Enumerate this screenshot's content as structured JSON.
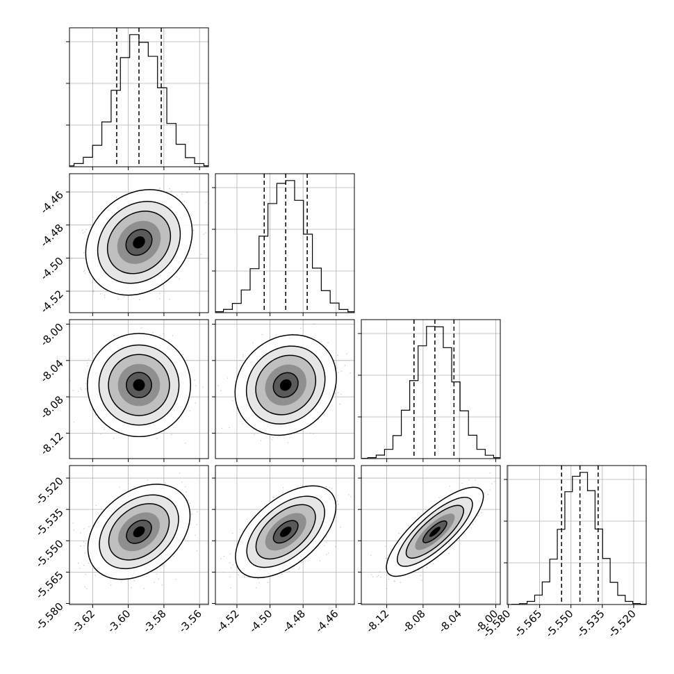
{
  "chart_data": {
    "type": "corner",
    "grid": true,
    "parameters": [
      {
        "index": 0,
        "range": [
          -3.633,
          -3.555
        ],
        "ticks": [
          "-3.62",
          "-3.60",
          "-3.58",
          "-3.56"
        ],
        "tick_values": [
          -3.62,
          -3.6,
          -3.58,
          -3.56
        ],
        "quantiles": [
          -3.6065,
          -3.594,
          -3.5815
        ],
        "center": -3.594,
        "sigma": 0.0124
      },
      {
        "index": 1,
        "range": [
          -4.533,
          -4.449
        ],
        "ticks": [
          "-4.52",
          "-4.50",
          "-4.48",
          "-4.46"
        ],
        "tick_values": [
          -4.52,
          -4.5,
          -4.48,
          -4.46
        ],
        "quantiles": [
          -4.5035,
          -4.4905,
          -4.4775
        ],
        "center": -4.4905,
        "sigma": 0.0128
      },
      {
        "index": 2,
        "range": [
          -8.148,
          -7.995
        ],
        "ticks": [
          "-8.12",
          "-8.08",
          "-8.04",
          "-8.00"
        ],
        "tick_values": [
          -8.12,
          -8.08,
          -8.04,
          -8.0
        ],
        "quantiles": [
          -8.09,
          -8.067,
          -8.046
        ],
        "center": -8.067,
        "sigma": 0.022
      },
      {
        "index": 3,
        "range": [
          -5.5805,
          -5.514
        ],
        "ticks": [
          "-5.580",
          "-5.565",
          "-5.550",
          "-5.535",
          "-5.520"
        ],
        "tick_values": [
          -5.58,
          -5.565,
          -5.55,
          -5.535,
          -5.52
        ],
        "quantiles": [
          -5.5545,
          -5.5457,
          -5.537
        ],
        "center": -5.5457,
        "sigma": 0.0086
      }
    ],
    "correlations": [
      {
        "pair": [
          1,
          0
        ],
        "rho": 0.2
      },
      {
        "pair": [
          2,
          0
        ],
        "rho": 0.0
      },
      {
        "pair": [
          2,
          1
        ],
        "rho": 0.15
      },
      {
        "pair": [
          3,
          0
        ],
        "rho": 0.35
      },
      {
        "pair": [
          3,
          1
        ],
        "rho": 0.55
      },
      {
        "pair": [
          3,
          2
        ],
        "rho": 0.8
      }
    ],
    "histogram_bins": 20,
    "colors": {
      "line": "#000000",
      "grid": "#b0b0b0",
      "points": "#8c8c8c",
      "fill_dark": "#000000"
    }
  }
}
